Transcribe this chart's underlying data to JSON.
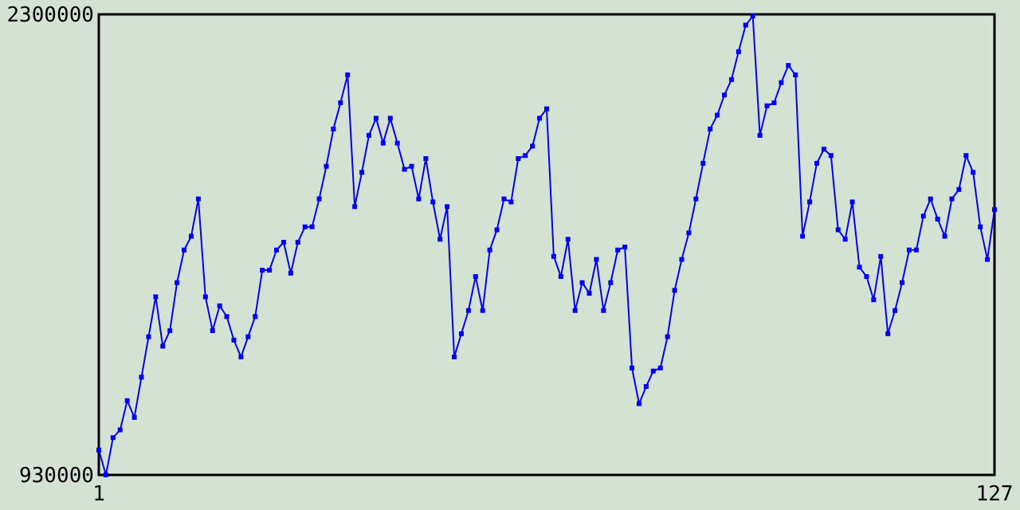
{
  "chart_data": {
    "type": "line",
    "x": [
      1,
      2,
      3,
      4,
      5,
      6,
      7,
      8,
      9,
      10,
      11,
      12,
      13,
      14,
      15,
      16,
      17,
      18,
      19,
      20,
      21,
      22,
      23,
      24,
      25,
      26,
      27,
      28,
      29,
      30,
      31,
      32,
      33,
      34,
      35,
      36,
      37,
      38,
      39,
      40,
      41,
      42,
      43,
      44,
      45,
      46,
      47,
      48,
      49,
      50,
      51,
      52,
      53,
      54,
      55,
      56,
      57,
      58,
      59,
      60,
      61,
      62,
      63,
      64,
      65,
      66,
      67,
      68,
      69,
      70,
      71,
      72,
      73,
      74,
      75,
      76,
      77,
      78,
      79,
      80,
      81,
      82,
      83,
      84,
      85,
      86,
      87,
      88,
      89,
      90,
      91,
      92,
      93,
      94,
      95,
      96,
      97,
      98,
      99,
      100,
      101,
      102,
      103,
      104,
      105,
      106,
      107,
      108,
      109,
      110,
      111,
      112,
      113,
      114,
      115,
      116,
      117,
      118,
      119,
      120,
      121,
      122,
      123,
      124,
      125,
      126,
      127
    ],
    "xlim": [
      1,
      127
    ],
    "xticks": [
      1,
      127
    ],
    "ylim": [
      930000,
      2300000
    ],
    "yticks": [
      930000,
      2300000
    ],
    "marker": "square",
    "series": [
      {
        "color": "#0000ff",
        "values": [
          1004000,
          930000,
          1041000,
          1064000,
          1151000,
          1101000,
          1221000,
          1341000,
          1460000,
          1313000,
          1359000,
          1502000,
          1599000,
          1640000,
          1751000,
          1460000,
          1359000,
          1433000,
          1401000,
          1331000,
          1281000,
          1341000,
          1401000,
          1539000,
          1539000,
          1599000,
          1622000,
          1530000,
          1622000,
          1668000,
          1668000,
          1751000,
          1848000,
          1959000,
          2037000,
          2120000,
          1728000,
          1830000,
          1940000,
          1991000,
          1917000,
          1991000,
          1917000,
          1839000,
          1848000,
          1751000,
          1871000,
          1742000,
          1631000,
          1728000,
          1281000,
          1350000,
          1419000,
          1520000,
          1419000,
          1599000,
          1659000,
          1751000,
          1742000,
          1871000,
          1880000,
          1908000,
          1991000,
          2019000,
          1580000,
          1520000,
          1631000,
          1419000,
          1502000,
          1470000,
          1571000,
          1419000,
          1502000,
          1599000,
          1608000,
          1248000,
          1142000,
          1193000,
          1239000,
          1248000,
          1341000,
          1479000,
          1571000,
          1650000,
          1751000,
          1857000,
          1959000,
          2000000,
          2060000,
          2106000,
          2189000,
          2268000,
          2295000,
          1940000,
          2028000,
          2037000,
          2097000,
          2148000,
          2120000,
          1640000,
          1742000,
          1857000,
          1899000,
          1880000,
          1659000,
          1631000,
          1742000,
          1548000,
          1520000,
          1451000,
          1580000,
          1350000,
          1419000,
          1502000,
          1599000,
          1599000,
          1700000,
          1751000,
          1691000,
          1640000,
          1751000,
          1779000,
          1880000,
          1830000,
          1668000,
          1571000,
          1719000
        ]
      }
    ]
  }
}
